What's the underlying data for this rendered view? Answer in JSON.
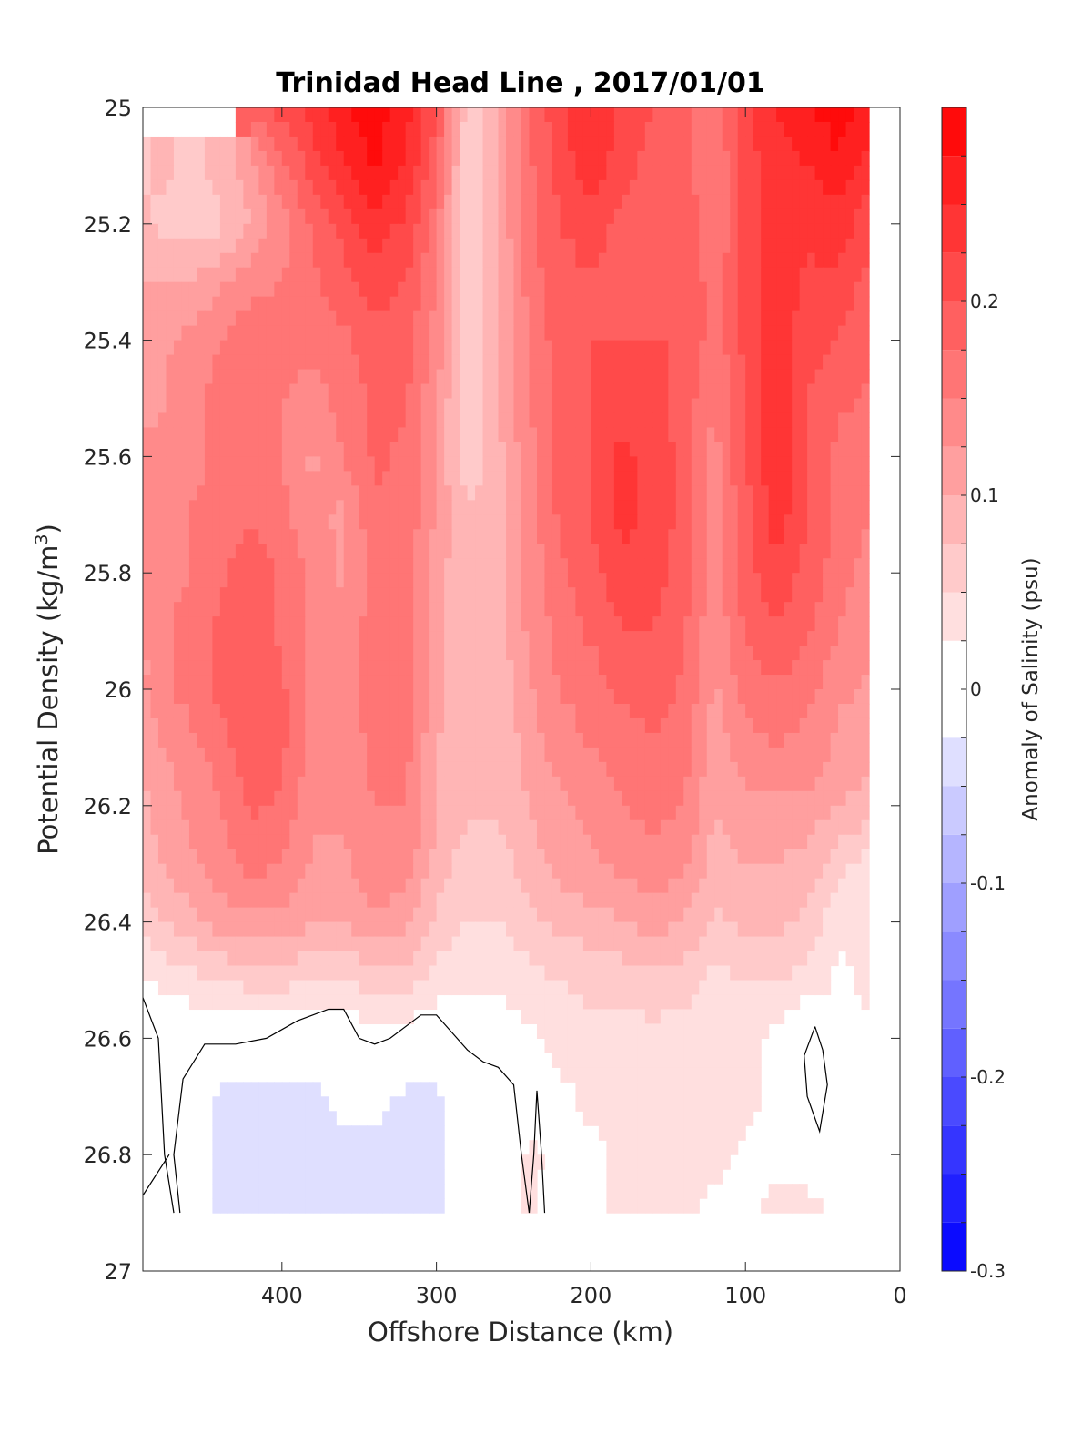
{
  "chart_data": {
    "type": "contour",
    "title": "Trinidad Head Line , 2017/01/01",
    "xlabel": "Offshore Distance (km)",
    "ylabel": "Potential Density (kg/m",
    "ylabel_sup": "3",
    "ylabel_close": ")",
    "xlim": [
      490,
      0
    ],
    "ylim": [
      25,
      27
    ],
    "y_reversed": true,
    "xticks": [
      400,
      300,
      200,
      100,
      0
    ],
    "xtick_labels": [
      "400",
      "300",
      "200",
      "100",
      "0"
    ],
    "yticks": [
      25,
      25.2,
      25.4,
      25.6,
      25.8,
      26,
      26.2,
      26.4,
      26.6,
      26.8,
      27
    ],
    "ytick_labels": [
      "25",
      "25.2",
      "25.4",
      "25.6",
      "25.8",
      "26",
      "26.2",
      "26.4",
      "26.6",
      "26.8",
      "27"
    ],
    "colorbar": {
      "label": "Anomaly of Salinity (psu)",
      "range": [
        -0.3,
        0.3
      ],
      "ticks": [
        -0.3,
        -0.2,
        -0.1,
        0,
        0.1,
        0.2
      ],
      "tick_labels": [
        "-0.3",
        "-0.2",
        "-0.1",
        "0",
        "0.1",
        "0.2"
      ],
      "levels": [
        -0.3,
        -0.275,
        -0.25,
        -0.225,
        -0.2,
        -0.175,
        -0.15,
        -0.125,
        -0.1,
        -0.075,
        -0.05,
        -0.025,
        0,
        0.025,
        0.05,
        0.075,
        0.1,
        0.125,
        0.15,
        0.175,
        0.2,
        0.225,
        0.25,
        0.275,
        0.3
      ],
      "colormap": "blue-white-red"
    },
    "data_extent": {
      "x_min": 20,
      "x_max": 490,
      "y_min": 25,
      "y_max": 26.9
    },
    "x_stations": [
      490,
      480,
      460,
      440,
      420,
      400,
      380,
      360,
      340,
      320,
      300,
      280,
      260,
      240,
      220,
      200,
      180,
      160,
      140,
      120,
      100,
      80,
      60,
      40,
      20
    ],
    "y_levels": [
      25,
      25.1,
      25.2,
      25.3,
      25.4,
      25.5,
      25.6,
      25.7,
      25.8,
      25.9,
      26,
      26.1,
      26.2,
      26.3,
      26.4,
      26.5,
      26.6,
      26.7,
      26.8,
      26.9
    ],
    "salinity_anomaly": [
      [
        null,
        null,
        null,
        null,
        0.18,
        0.21,
        0.24,
        0.27,
        0.29,
        0.26,
        0.2,
        0.06,
        0.1,
        0.17,
        0.22,
        0.25,
        0.22,
        0.2,
        0.18,
        0.16,
        0.22,
        0.25,
        0.27,
        0.29,
        0.26
      ],
      [
        0.07,
        0.08,
        0.07,
        0.08,
        0.12,
        0.17,
        0.21,
        0.25,
        0.28,
        0.25,
        0.18,
        0.05,
        0.1,
        0.17,
        0.21,
        0.24,
        0.21,
        0.19,
        0.18,
        0.15,
        0.21,
        0.24,
        0.25,
        0.27,
        0.24
      ],
      [
        0.08,
        0.07,
        0.06,
        0.07,
        0.1,
        0.14,
        0.18,
        0.21,
        0.24,
        0.22,
        0.16,
        0.05,
        0.1,
        0.17,
        0.2,
        0.21,
        0.19,
        0.19,
        0.2,
        0.15,
        0.21,
        0.24,
        0.23,
        0.24,
        0.21
      ],
      [
        0.1,
        0.1,
        0.1,
        0.12,
        0.14,
        0.15,
        0.17,
        0.19,
        0.21,
        0.2,
        0.15,
        0.05,
        0.1,
        0.16,
        0.19,
        0.2,
        0.19,
        0.19,
        0.2,
        0.16,
        0.21,
        0.25,
        0.22,
        0.22,
        0.19
      ],
      [
        0.11,
        0.12,
        0.13,
        0.15,
        0.17,
        0.16,
        0.16,
        0.17,
        0.19,
        0.19,
        0.14,
        0.05,
        0.1,
        0.15,
        0.19,
        0.2,
        0.2,
        0.2,
        0.2,
        0.16,
        0.21,
        0.24,
        0.21,
        0.2,
        0.18
      ],
      [
        0.12,
        0.12,
        0.14,
        0.16,
        0.17,
        0.15,
        0.14,
        0.16,
        0.18,
        0.18,
        0.13,
        0.05,
        0.1,
        0.15,
        0.18,
        0.2,
        0.22,
        0.21,
        0.19,
        0.15,
        0.2,
        0.24,
        0.2,
        0.18,
        0.17
      ],
      [
        0.13,
        0.13,
        0.14,
        0.16,
        0.16,
        0.15,
        0.12,
        0.15,
        0.18,
        0.17,
        0.12,
        0.05,
        0.09,
        0.14,
        0.18,
        0.2,
        0.23,
        0.22,
        0.19,
        0.14,
        0.2,
        0.25,
        0.2,
        0.17,
        0.16
      ],
      [
        0.13,
        0.14,
        0.15,
        0.16,
        0.17,
        0.16,
        0.13,
        0.12,
        0.17,
        0.17,
        0.12,
        0.08,
        0.09,
        0.14,
        0.18,
        0.2,
        0.23,
        0.22,
        0.19,
        0.14,
        0.19,
        0.24,
        0.2,
        0.17,
        0.15
      ],
      [
        0.13,
        0.14,
        0.15,
        0.17,
        0.19,
        0.17,
        0.14,
        0.12,
        0.16,
        0.17,
        0.11,
        0.08,
        0.09,
        0.13,
        0.17,
        0.19,
        0.22,
        0.21,
        0.19,
        0.13,
        0.19,
        0.22,
        0.19,
        0.16,
        0.14
      ],
      [
        0.12,
        0.14,
        0.16,
        0.18,
        0.2,
        0.17,
        0.14,
        0.14,
        0.16,
        0.17,
        0.11,
        0.08,
        0.09,
        0.13,
        0.16,
        0.18,
        0.2,
        0.2,
        0.18,
        0.13,
        0.18,
        0.2,
        0.18,
        0.15,
        0.13
      ],
      [
        0.12,
        0.14,
        0.16,
        0.18,
        0.2,
        0.18,
        0.14,
        0.14,
        0.16,
        0.17,
        0.11,
        0.08,
        0.08,
        0.12,
        0.15,
        0.16,
        0.18,
        0.19,
        0.17,
        0.12,
        0.16,
        0.17,
        0.16,
        0.13,
        0.12
      ],
      [
        0.11,
        0.12,
        0.14,
        0.16,
        0.2,
        0.18,
        0.14,
        0.13,
        0.16,
        0.16,
        0.1,
        0.08,
        0.08,
        0.11,
        0.14,
        0.15,
        0.16,
        0.17,
        0.16,
        0.11,
        0.14,
        0.15,
        0.14,
        0.12,
        0.11
      ],
      [
        0.09,
        0.11,
        0.13,
        0.15,
        0.18,
        0.17,
        0.13,
        0.13,
        0.15,
        0.15,
        0.1,
        0.08,
        0.08,
        0.1,
        0.12,
        0.13,
        0.15,
        0.16,
        0.15,
        0.1,
        0.12,
        0.12,
        0.12,
        0.1,
        0.09
      ],
      [
        0.08,
        0.1,
        0.12,
        0.14,
        0.16,
        0.15,
        0.12,
        0.12,
        0.14,
        0.14,
        0.09,
        0.06,
        0.06,
        0.09,
        0.11,
        0.12,
        0.13,
        0.14,
        0.13,
        0.09,
        0.1,
        0.1,
        0.09,
        0.06,
        0.04
      ],
      [
        0.06,
        0.07,
        0.09,
        0.11,
        0.12,
        0.12,
        0.1,
        0.1,
        0.12,
        0.11,
        0.07,
        0.05,
        0.05,
        0.07,
        0.08,
        0.09,
        0.1,
        0.11,
        0.1,
        0.07,
        0.08,
        0.08,
        0.07,
        0.03,
        0.03
      ],
      [
        0.02,
        0.03,
        0.04,
        0.05,
        0.06,
        0.06,
        0.05,
        0.05,
        0.06,
        0.06,
        0.04,
        0.03,
        0.03,
        0.04,
        0.05,
        0.06,
        0.06,
        0.07,
        0.06,
        0.04,
        0.05,
        0.05,
        0.04,
        0.02,
        0.03
      ],
      [
        0.0,
        -0.01,
        0.0,
        0.0,
        0.0,
        0.0,
        0.0,
        0.0,
        0.01,
        0.01,
        0.0,
        0.01,
        0.01,
        0.02,
        0.03,
        0.04,
        0.04,
        0.04,
        0.04,
        0.03,
        0.03,
        0.02,
        -0.01,
        0.02,
        0.02
      ],
      [
        -0.01,
        -0.02,
        -0.01,
        -0.03,
        -0.03,
        -0.03,
        -0.03,
        -0.02,
        -0.02,
        -0.03,
        -0.03,
        -0.01,
        0.0,
        0.01,
        0.02,
        0.03,
        0.03,
        0.03,
        0.03,
        0.05,
        0.03,
        0.02,
        -0.01,
        0.01,
        0.02
      ],
      [
        0.0,
        -0.01,
        -0.01,
        -0.03,
        -0.03,
        -0.03,
        -0.03,
        -0.03,
        -0.03,
        -0.03,
        -0.03,
        -0.01,
        0.0,
        0.03,
        0.02,
        0.02,
        0.03,
        0.03,
        0.03,
        0.03,
        0.02,
        0.02,
        0.02,
        0.01,
        0.0
      ],
      [
        0.0,
        0.0,
        -0.01,
        -0.03,
        -0.03,
        -0.03,
        -0.03,
        -0.03,
        -0.03,
        -0.03,
        -0.03,
        -0.01,
        0.0,
        0.03,
        0.01,
        0.02,
        0.03,
        0.03,
        0.03,
        0.02,
        0.02,
        0.03,
        0.03,
        0.02,
        0.0
      ]
    ],
    "zero_contour_lines": [
      [
        [
          490,
          26.53
        ],
        [
          480,
          26.6
        ],
        [
          476,
          26.8
        ],
        [
          470,
          26.9
        ]
      ],
      [
        [
          490,
          26.87
        ],
        [
          473,
          26.8
        ]
      ],
      [
        [
          466,
          26.9
        ],
        [
          470,
          26.8
        ],
        [
          464,
          26.67
        ],
        [
          450,
          26.61
        ],
        [
          430,
          26.61
        ],
        [
          410,
          26.6
        ],
        [
          390,
          26.57
        ],
        [
          370,
          26.55
        ],
        [
          360,
          26.55
        ],
        [
          350,
          26.6
        ],
        [
          340,
          26.61
        ],
        [
          330,
          26.6
        ],
        [
          310,
          26.56
        ],
        [
          300,
          26.56
        ],
        [
          290,
          26.59
        ],
        [
          280,
          26.62
        ],
        [
          270,
          26.64
        ],
        [
          260,
          26.65
        ],
        [
          250,
          26.68
        ],
        [
          245,
          26.8
        ],
        [
          240,
          26.9
        ]
      ],
      [
        [
          230,
          26.9
        ],
        [
          232,
          26.8
        ],
        [
          235,
          26.69
        ],
        [
          237,
          26.8
        ],
        [
          240,
          26.9
        ]
      ],
      [
        [
          55,
          26.58
        ],
        [
          50,
          26.62
        ],
        [
          47,
          26.68
        ],
        [
          52,
          26.76
        ],
        [
          60,
          26.7
        ],
        [
          62,
          26.63
        ],
        [
          55,
          26.58
        ]
      ]
    ]
  }
}
